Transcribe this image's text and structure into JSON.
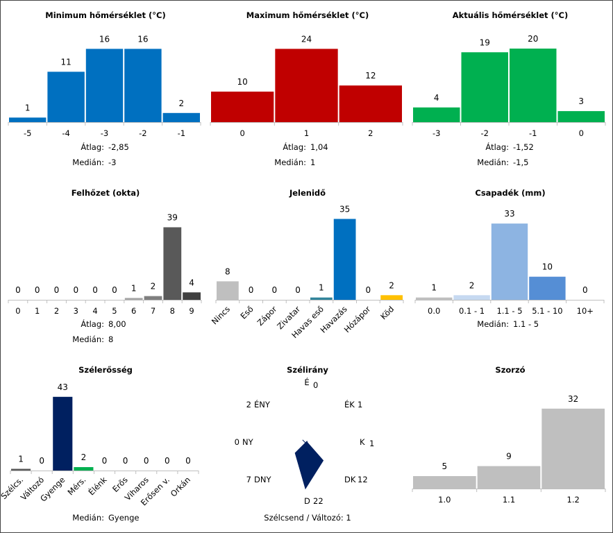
{
  "chart_data": [
    {
      "id": "min_temp",
      "type": "bar",
      "title": "Minimum hőmérséklet (°C)",
      "categories": [
        "-5",
        "-4",
        "-3",
        "-2",
        "-1"
      ],
      "values": [
        1,
        11,
        16,
        16,
        2
      ],
      "colors": [
        "#0070c0"
      ],
      "stats": [
        {
          "label": "Átlag:",
          "value": "-2,85"
        },
        {
          "label": "Medián:",
          "value": "-3"
        }
      ]
    },
    {
      "id": "max_temp",
      "type": "bar",
      "title": "Maximum hőmérséklet (°C)",
      "categories": [
        "0",
        "1",
        "2"
      ],
      "values": [
        10,
        24,
        12
      ],
      "colors": [
        "#c00000"
      ],
      "stats": [
        {
          "label": "Átlag:",
          "value": "1,04"
        },
        {
          "label": "Medián:",
          "value": "1"
        }
      ]
    },
    {
      "id": "cur_temp",
      "type": "bar",
      "title": "Aktuális hőmérséklet (°C)",
      "categories": [
        "-3",
        "-2",
        "-1",
        "0"
      ],
      "values": [
        4,
        19,
        20,
        3
      ],
      "colors": [
        "#00b050"
      ],
      "stats": [
        {
          "label": "Átlag:",
          "value": "-1,52"
        },
        {
          "label": "Medián:",
          "value": "-1,5"
        }
      ]
    },
    {
      "id": "cloud",
      "type": "bar",
      "title": "Felhőzet (okta)",
      "categories": [
        "0",
        "1",
        "2",
        "3",
        "4",
        "5",
        "6",
        "7",
        "8",
        "9"
      ],
      "values": [
        0,
        0,
        0,
        0,
        0,
        0,
        1,
        2,
        39,
        4
      ],
      "colors": [
        "#bfbfbf",
        "#bfbfbf",
        "#bfbfbf",
        "#bfbfbf",
        "#bfbfbf",
        "#bfbfbf",
        "#a6a6a6",
        "#7f7f7f",
        "#595959",
        "#404040"
      ],
      "stats": [
        {
          "label": "Átlag:",
          "value": "8,00"
        },
        {
          "label": "Medián:",
          "value": "8"
        }
      ]
    },
    {
      "id": "weather",
      "type": "bar",
      "title": "Jelenidő",
      "categories": [
        "Nincs",
        "Eső",
        "Zápor",
        "Zivatar",
        "Havas eső",
        "Havazás",
        "Hózápor",
        "Köd"
      ],
      "values": [
        8,
        0,
        0,
        0,
        1,
        35,
        0,
        2
      ],
      "colors": [
        "#bfbfbf",
        "#0070c0",
        "#0070c0",
        "#0070c0",
        "#31849b",
        "#0070c0",
        "#0070c0",
        "#ffc000"
      ],
      "rotate_labels": true,
      "stats": []
    },
    {
      "id": "precip",
      "type": "bar",
      "title": "Csapadék (mm)",
      "categories": [
        "0.0",
        "0.1 - 1",
        "1.1 - 5",
        "5.1 - 10",
        "10+"
      ],
      "values": [
        1,
        2,
        33,
        10,
        0
      ],
      "colors": [
        "#bfbfbf",
        "#c6d9f1",
        "#8db4e2",
        "#558ed5",
        "#1f497d"
      ],
      "stats": [
        {
          "label": "Medián:",
          "value": "1.1 - 5"
        }
      ]
    },
    {
      "id": "wind_strength",
      "type": "bar",
      "title": "Szélerősség",
      "categories": [
        "Szélcs.",
        "Változó",
        "Gyenge",
        "Mérs.",
        "Élénk",
        "Erős",
        "Viharos",
        "Erősen v.",
        "Orkán"
      ],
      "values": [
        1,
        0,
        43,
        2,
        0,
        0,
        0,
        0,
        0
      ],
      "colors": [
        "#595959",
        "#595959",
        "#002060",
        "#00b050",
        "#00b050",
        "#ffc000",
        "#ff0000",
        "#c00000",
        "#7030a0"
      ],
      "rotate_labels": true,
      "stats": [
        {
          "label": "Medián:",
          "value": "Gyenge"
        }
      ]
    },
    {
      "id": "wind_dir",
      "type": "radar",
      "title": "Szélirány",
      "directions": [
        "É",
        "ÉK",
        "K",
        "DK",
        "D",
        "DNY",
        "NY",
        "ÉNY"
      ],
      "values": [
        0,
        1,
        1,
        12,
        22,
        7,
        0,
        2
      ],
      "max": 22,
      "color": "#002060",
      "footer": "Szélcsend / Változó: 1"
    },
    {
      "id": "multiplier",
      "type": "bar",
      "title": "Szorzó",
      "categories": [
        "1.0",
        "1.1",
        "1.2"
      ],
      "values": [
        5,
        9,
        32
      ],
      "colors": [
        "#bfbfbf"
      ],
      "stats": []
    }
  ]
}
